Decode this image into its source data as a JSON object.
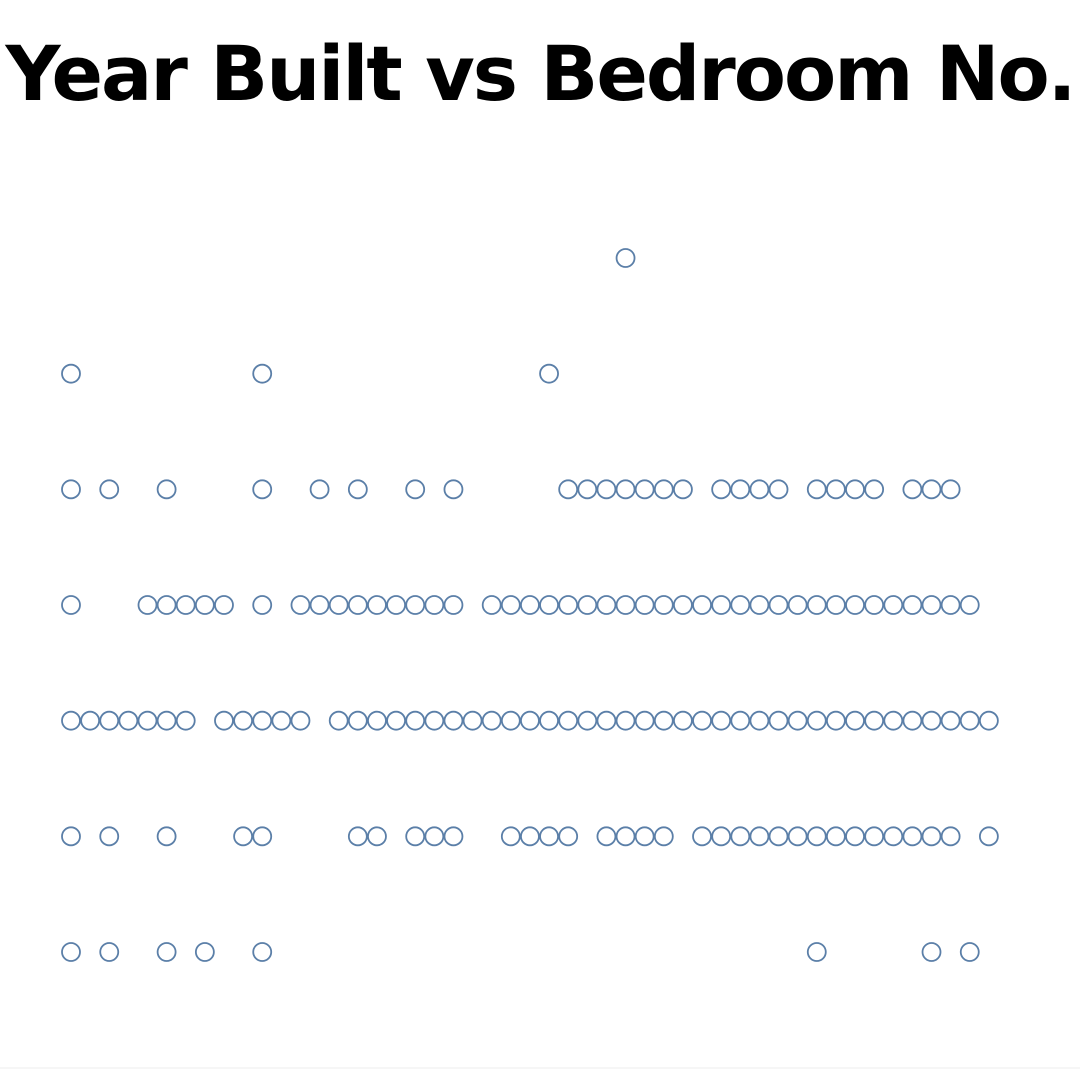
{
  "chart_data": {
    "type": "scatter",
    "title": "Year Built vs Bedroom No.",
    "xlabel": "",
    "ylabel": "",
    "marker": "hollow-circle",
    "grid": false,
    "legend": "none",
    "point_color": "#5b7fa8",
    "background_color": "#ffffff",
    "title_color": "#000000",
    "xlim": [
      0,
      49
    ],
    "ylim": [
      1,
      7
    ],
    "series": [
      {
        "points": [
          {
            "x": 29,
            "y": 7
          },
          {
            "x": 0,
            "y": 6
          },
          {
            "x": 10,
            "y": 6
          },
          {
            "x": 25,
            "y": 6
          },
          {
            "x": 0,
            "y": 5
          },
          {
            "x": 2,
            "y": 5
          },
          {
            "x": 5,
            "y": 5
          },
          {
            "x": 10,
            "y": 5
          },
          {
            "x": 13,
            "y": 5
          },
          {
            "x": 15,
            "y": 5
          },
          {
            "x": 18,
            "y": 5
          },
          {
            "x": 20,
            "y": 5
          },
          {
            "x": 26,
            "y": 5
          },
          {
            "x": 27,
            "y": 5
          },
          {
            "x": 28,
            "y": 5
          },
          {
            "x": 29,
            "y": 5
          },
          {
            "x": 30,
            "y": 5
          },
          {
            "x": 31,
            "y": 5
          },
          {
            "x": 32,
            "y": 5
          },
          {
            "x": 34,
            "y": 5
          },
          {
            "x": 35,
            "y": 5
          },
          {
            "x": 36,
            "y": 5
          },
          {
            "x": 37,
            "y": 5
          },
          {
            "x": 39,
            "y": 5
          },
          {
            "x": 40,
            "y": 5
          },
          {
            "x": 41,
            "y": 5
          },
          {
            "x": 42,
            "y": 5
          },
          {
            "x": 44,
            "y": 5
          },
          {
            "x": 45,
            "y": 5
          },
          {
            "x": 46,
            "y": 5
          },
          {
            "x": 0,
            "y": 4
          },
          {
            "x": 4,
            "y": 4
          },
          {
            "x": 5,
            "y": 4
          },
          {
            "x": 6,
            "y": 4
          },
          {
            "x": 7,
            "y": 4
          },
          {
            "x": 8,
            "y": 4
          },
          {
            "x": 10,
            "y": 4
          },
          {
            "x": 12,
            "y": 4
          },
          {
            "x": 13,
            "y": 4
          },
          {
            "x": 14,
            "y": 4
          },
          {
            "x": 15,
            "y": 4
          },
          {
            "x": 16,
            "y": 4
          },
          {
            "x": 17,
            "y": 4
          },
          {
            "x": 18,
            "y": 4
          },
          {
            "x": 19,
            "y": 4
          },
          {
            "x": 20,
            "y": 4
          },
          {
            "x": 22,
            "y": 4
          },
          {
            "x": 23,
            "y": 4
          },
          {
            "x": 24,
            "y": 4
          },
          {
            "x": 25,
            "y": 4
          },
          {
            "x": 26,
            "y": 4
          },
          {
            "x": 27,
            "y": 4
          },
          {
            "x": 28,
            "y": 4
          },
          {
            "x": 29,
            "y": 4
          },
          {
            "x": 30,
            "y": 4
          },
          {
            "x": 31,
            "y": 4
          },
          {
            "x": 32,
            "y": 4
          },
          {
            "x": 33,
            "y": 4
          },
          {
            "x": 34,
            "y": 4
          },
          {
            "x": 35,
            "y": 4
          },
          {
            "x": 36,
            "y": 4
          },
          {
            "x": 37,
            "y": 4
          },
          {
            "x": 38,
            "y": 4
          },
          {
            "x": 39,
            "y": 4
          },
          {
            "x": 40,
            "y": 4
          },
          {
            "x": 41,
            "y": 4
          },
          {
            "x": 42,
            "y": 4
          },
          {
            "x": 43,
            "y": 4
          },
          {
            "x": 44,
            "y": 4
          },
          {
            "x": 45,
            "y": 4
          },
          {
            "x": 46,
            "y": 4
          },
          {
            "x": 47,
            "y": 4
          },
          {
            "x": 0,
            "y": 3
          },
          {
            "x": 1,
            "y": 3
          },
          {
            "x": 2,
            "y": 3
          },
          {
            "x": 3,
            "y": 3
          },
          {
            "x": 4,
            "y": 3
          },
          {
            "x": 5,
            "y": 3
          },
          {
            "x": 6,
            "y": 3
          },
          {
            "x": 8,
            "y": 3
          },
          {
            "x": 9,
            "y": 3
          },
          {
            "x": 10,
            "y": 3
          },
          {
            "x": 11,
            "y": 3
          },
          {
            "x": 12,
            "y": 3
          },
          {
            "x": 14,
            "y": 3
          },
          {
            "x": 15,
            "y": 3
          },
          {
            "x": 16,
            "y": 3
          },
          {
            "x": 17,
            "y": 3
          },
          {
            "x": 18,
            "y": 3
          },
          {
            "x": 19,
            "y": 3
          },
          {
            "x": 20,
            "y": 3
          },
          {
            "x": 21,
            "y": 3
          },
          {
            "x": 22,
            "y": 3
          },
          {
            "x": 23,
            "y": 3
          },
          {
            "x": 24,
            "y": 3
          },
          {
            "x": 25,
            "y": 3
          },
          {
            "x": 26,
            "y": 3
          },
          {
            "x": 27,
            "y": 3
          },
          {
            "x": 28,
            "y": 3
          },
          {
            "x": 29,
            "y": 3
          },
          {
            "x": 30,
            "y": 3
          },
          {
            "x": 31,
            "y": 3
          },
          {
            "x": 32,
            "y": 3
          },
          {
            "x": 33,
            "y": 3
          },
          {
            "x": 34,
            "y": 3
          },
          {
            "x": 35,
            "y": 3
          },
          {
            "x": 36,
            "y": 3
          },
          {
            "x": 37,
            "y": 3
          },
          {
            "x": 38,
            "y": 3
          },
          {
            "x": 39,
            "y": 3
          },
          {
            "x": 40,
            "y": 3
          },
          {
            "x": 41,
            "y": 3
          },
          {
            "x": 42,
            "y": 3
          },
          {
            "x": 43,
            "y": 3
          },
          {
            "x": 44,
            "y": 3
          },
          {
            "x": 45,
            "y": 3
          },
          {
            "x": 46,
            "y": 3
          },
          {
            "x": 47,
            "y": 3
          },
          {
            "x": 48,
            "y": 3
          },
          {
            "x": 0,
            "y": 2
          },
          {
            "x": 2,
            "y": 2
          },
          {
            "x": 5,
            "y": 2
          },
          {
            "x": 9,
            "y": 2
          },
          {
            "x": 10,
            "y": 2
          },
          {
            "x": 15,
            "y": 2
          },
          {
            "x": 16,
            "y": 2
          },
          {
            "x": 18,
            "y": 2
          },
          {
            "x": 19,
            "y": 2
          },
          {
            "x": 20,
            "y": 2
          },
          {
            "x": 23,
            "y": 2
          },
          {
            "x": 24,
            "y": 2
          },
          {
            "x": 25,
            "y": 2
          },
          {
            "x": 26,
            "y": 2
          },
          {
            "x": 28,
            "y": 2
          },
          {
            "x": 29,
            "y": 2
          },
          {
            "x": 30,
            "y": 2
          },
          {
            "x": 31,
            "y": 2
          },
          {
            "x": 33,
            "y": 2
          },
          {
            "x": 34,
            "y": 2
          },
          {
            "x": 35,
            "y": 2
          },
          {
            "x": 36,
            "y": 2
          },
          {
            "x": 37,
            "y": 2
          },
          {
            "x": 38,
            "y": 2
          },
          {
            "x": 39,
            "y": 2
          },
          {
            "x": 40,
            "y": 2
          },
          {
            "x": 41,
            "y": 2
          },
          {
            "x": 42,
            "y": 2
          },
          {
            "x": 43,
            "y": 2
          },
          {
            "x": 44,
            "y": 2
          },
          {
            "x": 45,
            "y": 2
          },
          {
            "x": 46,
            "y": 2
          },
          {
            "x": 48,
            "y": 2
          },
          {
            "x": 0,
            "y": 1
          },
          {
            "x": 2,
            "y": 1
          },
          {
            "x": 5,
            "y": 1
          },
          {
            "x": 7,
            "y": 1
          },
          {
            "x": 10,
            "y": 1
          },
          {
            "x": 39,
            "y": 1
          },
          {
            "x": 45,
            "y": 1
          },
          {
            "x": 47,
            "y": 1
          }
        ]
      }
    ]
  }
}
